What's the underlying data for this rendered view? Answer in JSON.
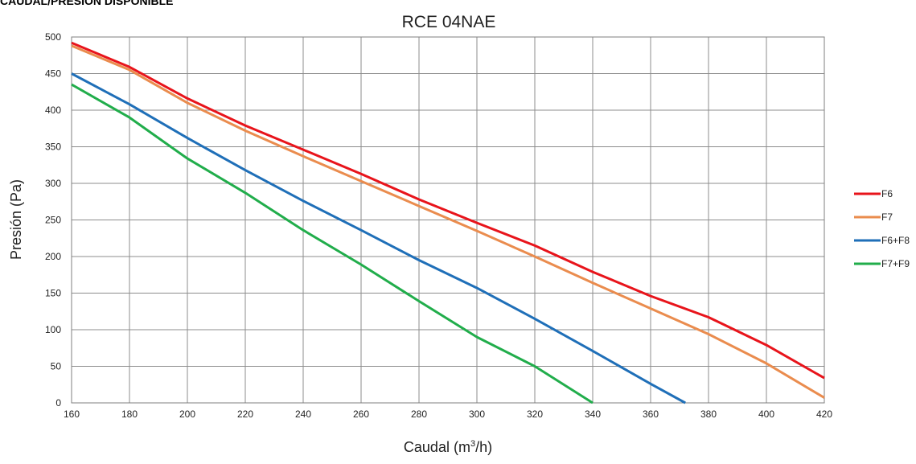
{
  "header": {
    "section_title": "CAUDAL/PRESIÓN DISPONIBLE"
  },
  "chart_data": {
    "type": "line",
    "title": "RCE 04NAE",
    "xlabel_main": "Caudal (m",
    "xlabel_sup": "3",
    "xlabel_end": "/h)",
    "ylabel": "Presión (Pa)",
    "xlim": [
      160,
      420
    ],
    "ylim": [
      0,
      500
    ],
    "x_ticks": [
      160,
      180,
      200,
      220,
      240,
      260,
      280,
      300,
      320,
      340,
      360,
      380,
      400,
      420
    ],
    "y_ticks": [
      0,
      50,
      100,
      150,
      200,
      250,
      300,
      350,
      400,
      450,
      500
    ],
    "grid": true,
    "legend_position": "right",
    "series": [
      {
        "name": "F6",
        "color": "#e8141b",
        "x": [
          160,
          180,
          200,
          220,
          240,
          260,
          280,
          300,
          320,
          340,
          360,
          380,
          400,
          420
        ],
        "y": [
          492,
          459,
          416,
          379,
          346,
          313,
          278,
          246,
          215,
          179,
          146,
          117,
          79,
          34
        ]
      },
      {
        "name": "F7",
        "color": "#ea8c4e",
        "x": [
          160,
          180,
          200,
          220,
          240,
          260,
          280,
          300,
          320,
          340,
          360,
          380,
          400,
          420
        ],
        "y": [
          488,
          455,
          410,
          372,
          337,
          303,
          269,
          235,
          200,
          164,
          129,
          94,
          54,
          7
        ]
      },
      {
        "name": "F6+F8",
        "color": "#1f6fb8",
        "x": [
          160,
          180,
          200,
          220,
          240,
          260,
          280,
          300,
          320,
          340,
          360,
          372
        ],
        "y": [
          450,
          408,
          362,
          318,
          276,
          236,
          195,
          157,
          115,
          71,
          26,
          0
        ]
      },
      {
        "name": "F7+F9",
        "color": "#21ad4b",
        "x": [
          160,
          180,
          200,
          220,
          240,
          260,
          280,
          300,
          320,
          340
        ],
        "y": [
          435,
          390,
          334,
          287,
          236,
          189,
          139,
          90,
          50,
          0
        ]
      }
    ]
  }
}
